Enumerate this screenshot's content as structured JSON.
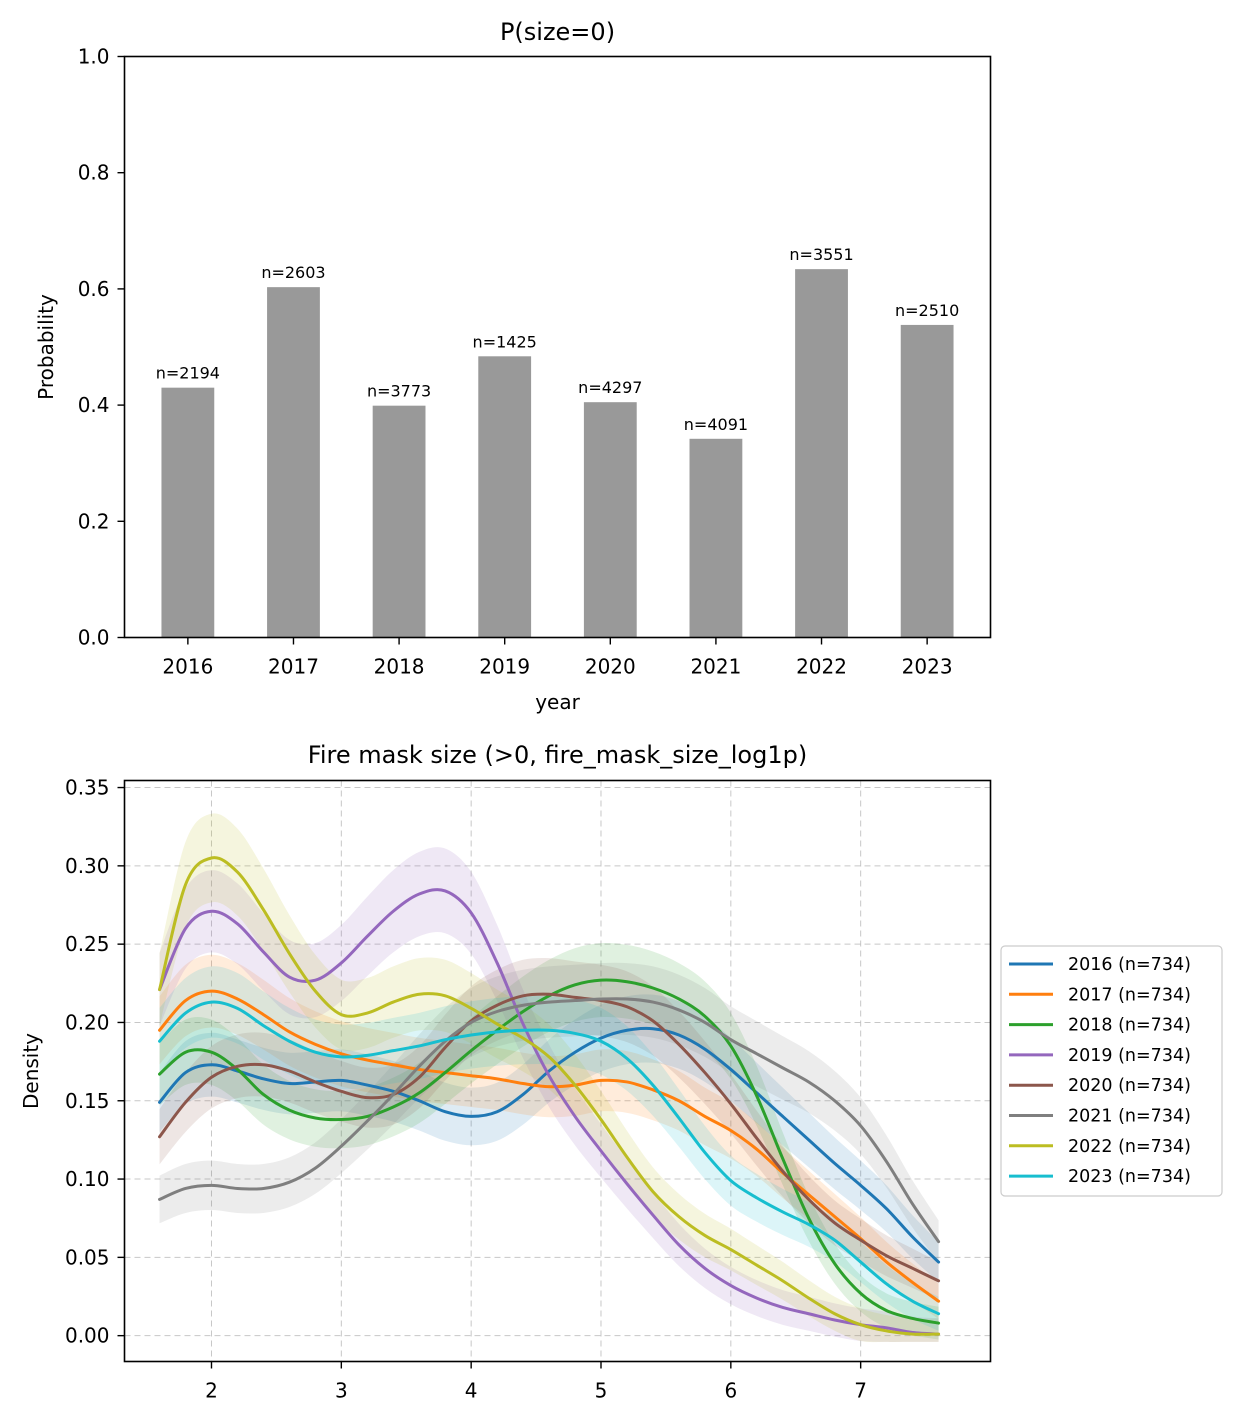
{
  "chart_data": [
    {
      "type": "bar",
      "title": "P(size=0)",
      "xlabel": "year",
      "ylabel": "Probability",
      "ylim": [
        0,
        1.0
      ],
      "yticks": [
        "0.0",
        "0.2",
        "0.4",
        "0.6",
        "0.8",
        "1.0"
      ],
      "grid": false,
      "categories": [
        "2016",
        "2017",
        "2018",
        "2019",
        "2020",
        "2021",
        "2022",
        "2023"
      ],
      "values": [
        0.43,
        0.603,
        0.399,
        0.484,
        0.405,
        0.342,
        0.634,
        0.538
      ],
      "labels": [
        "n=2194",
        "n=2603",
        "n=3773",
        "n=1425",
        "n=4297",
        "n=4091",
        "n=3551",
        "n=2510"
      ],
      "color": "#999999"
    },
    {
      "type": "line",
      "title": "Fire mask size (>0, fire_mask_size_log1p)",
      "xlabel": "",
      "ylabel": "Density",
      "xlim": [
        1.33,
        8.0
      ],
      "ylim": [
        -0.0165,
        0.3545
      ],
      "xticks": [
        "2",
        "3",
        "4",
        "5",
        "6",
        "7"
      ],
      "yticks": [
        "0.00",
        "0.05",
        "0.10",
        "0.15",
        "0.20",
        "0.25",
        "0.30",
        "0.35"
      ],
      "grid": true,
      "legend_position": "center-right outside",
      "x": [
        1.6,
        1.8,
        2.0,
        2.2,
        2.4,
        2.6,
        2.8,
        3.0,
        3.2,
        3.4,
        3.6,
        3.8,
        4.0,
        4.2,
        4.4,
        4.6,
        4.8,
        5.0,
        5.2,
        5.4,
        5.6,
        5.8,
        6.0,
        6.2,
        6.4,
        6.6,
        6.8,
        7.0,
        7.2,
        7.4,
        7.6
      ],
      "band_half_width": 0.02,
      "series": [
        {
          "name": "2016 (n=734)",
          "color": "#1f77b4",
          "values": [
            0.149,
            0.168,
            0.173,
            0.169,
            0.164,
            0.161,
            0.162,
            0.163,
            0.16,
            0.156,
            0.15,
            0.143,
            0.14,
            0.143,
            0.154,
            0.169,
            0.181,
            0.19,
            0.195,
            0.196,
            0.192,
            0.183,
            0.17,
            0.155,
            0.14,
            0.125,
            0.11,
            0.096,
            0.081,
            0.063,
            0.047
          ]
        },
        {
          "name": "2017 (n=734)",
          "color": "#ff7f0e",
          "values": [
            0.195,
            0.214,
            0.22,
            0.215,
            0.205,
            0.194,
            0.186,
            0.18,
            0.176,
            0.173,
            0.17,
            0.168,
            0.166,
            0.164,
            0.161,
            0.159,
            0.16,
            0.163,
            0.162,
            0.157,
            0.15,
            0.14,
            0.131,
            0.119,
            0.104,
            0.09,
            0.076,
            0.062,
            0.047,
            0.034,
            0.022
          ]
        },
        {
          "name": "2018 (n=734)",
          "color": "#2ca02c",
          "values": [
            0.167,
            0.181,
            0.181,
            0.17,
            0.154,
            0.144,
            0.139,
            0.138,
            0.14,
            0.146,
            0.155,
            0.168,
            0.182,
            0.195,
            0.207,
            0.217,
            0.224,
            0.227,
            0.226,
            0.222,
            0.215,
            0.204,
            0.185,
            0.153,
            0.113,
            0.075,
            0.046,
            0.027,
            0.016,
            0.011,
            0.008
          ]
        },
        {
          "name": "2019 (n=734)",
          "color": "#9467bd",
          "values": [
            0.221,
            0.26,
            0.271,
            0.263,
            0.245,
            0.229,
            0.227,
            0.238,
            0.255,
            0.271,
            0.282,
            0.284,
            0.27,
            0.238,
            0.199,
            0.166,
            0.14,
            0.118,
            0.097,
            0.077,
            0.058,
            0.043,
            0.032,
            0.024,
            0.018,
            0.014,
            0.01,
            0.007,
            0.005,
            0.002,
            0.001
          ]
        },
        {
          "name": "2020 (n=734)",
          "color": "#8c564b",
          "values": [
            0.127,
            0.149,
            0.165,
            0.172,
            0.173,
            0.169,
            0.162,
            0.156,
            0.152,
            0.154,
            0.165,
            0.184,
            0.201,
            0.211,
            0.217,
            0.218,
            0.216,
            0.214,
            0.21,
            0.201,
            0.186,
            0.168,
            0.148,
            0.126,
            0.105,
            0.087,
            0.072,
            0.061,
            0.051,
            0.043,
            0.035
          ]
        },
        {
          "name": "2021 (n=734)",
          "color": "#7f7f7f",
          "values": [
            0.087,
            0.094,
            0.096,
            0.094,
            0.094,
            0.098,
            0.107,
            0.121,
            0.137,
            0.154,
            0.172,
            0.188,
            0.2,
            0.207,
            0.211,
            0.213,
            0.214,
            0.215,
            0.215,
            0.213,
            0.208,
            0.2,
            0.189,
            0.18,
            0.171,
            0.162,
            0.15,
            0.134,
            0.111,
            0.084,
            0.06
          ]
        },
        {
          "name": "2022 (n=734)",
          "color": "#bcbd22",
          "values": [
            0.221,
            0.288,
            0.305,
            0.296,
            0.272,
            0.244,
            0.22,
            0.205,
            0.206,
            0.213,
            0.218,
            0.217,
            0.209,
            0.199,
            0.19,
            0.178,
            0.16,
            0.138,
            0.114,
            0.092,
            0.076,
            0.064,
            0.055,
            0.045,
            0.035,
            0.024,
            0.014,
            0.007,
            0.003,
            0.001,
            0.001
          ]
        },
        {
          "name": "2023 (n=734)",
          "color": "#17becf",
          "values": [
            0.188,
            0.206,
            0.213,
            0.209,
            0.198,
            0.188,
            0.181,
            0.178,
            0.179,
            0.182,
            0.185,
            0.189,
            0.192,
            0.194,
            0.195,
            0.195,
            0.193,
            0.188,
            0.177,
            0.16,
            0.139,
            0.117,
            0.099,
            0.088,
            0.079,
            0.071,
            0.061,
            0.047,
            0.033,
            0.022,
            0.014
          ]
        }
      ]
    }
  ]
}
